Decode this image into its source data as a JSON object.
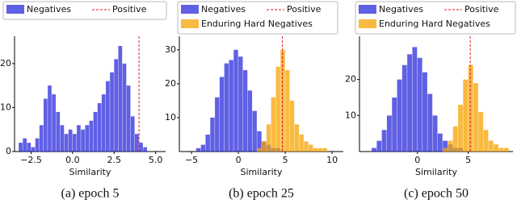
{
  "chart_data": [
    {
      "type": "histogram",
      "xlabel": "Similarity",
      "caption": "(a) epoch 5",
      "bins": [
        -3.5,
        -3.25,
        -3.0,
        -2.75,
        -2.5,
        -2.25,
        -2.0,
        -1.75,
        -1.5,
        -1.25,
        -1.0,
        -0.75,
        -0.5,
        -0.25,
        0,
        0.25,
        0.5,
        0.75,
        1.0,
        1.25,
        1.5,
        1.75,
        2.0,
        2.25,
        2.5,
        2.75,
        3.0,
        3.25,
        3.5,
        3.75,
        4.0,
        4.25,
        4.5,
        4.75,
        5.0,
        5.25,
        5.5
      ],
      "series": [
        {
          "name": "Negatives",
          "color": "#2b2bdc",
          "values": [
            0,
            2,
            3,
            2,
            1,
            3,
            6,
            12,
            15,
            13,
            9,
            6,
            4,
            5,
            4,
            6,
            5,
            6,
            7,
            9,
            11,
            13,
            16,
            18,
            21,
            24,
            20,
            15,
            8,
            4,
            2,
            1,
            0,
            0,
            0,
            0
          ]
        }
      ],
      "reference_line": {
        "name": "Positive",
        "x": 4.0,
        "color": "#e41a1c"
      },
      "xlim": [
        -3.5,
        5.6
      ],
      "ylim": [
        0,
        26.2
      ],
      "xticks": [
        {
          "value": -2.5,
          "label": "−2.5"
        },
        {
          "value": 0,
          "label": "0.0"
        },
        2.5,
        {
          "value": 5,
          "label": "5.0"
        }
      ],
      "yticks": [
        0,
        10,
        20
      ]
    },
    {
      "type": "histogram",
      "xlabel": "Similarity",
      "caption": "(b) epoch 25",
      "bins": [
        -5,
        -4.5,
        -4,
        -3.5,
        -3,
        -2.5,
        -2,
        -1.5,
        -1,
        -0.5,
        0,
        0.5,
        1,
        1.5,
        2,
        2.5,
        3,
        3.5,
        4,
        4.5,
        5,
        5.5,
        6,
        6.5,
        7,
        7.5,
        8,
        8.5,
        9,
        9.5,
        10
      ],
      "series": [
        {
          "name": "Negatives",
          "color": "#2b2bdc",
          "values": [
            0,
            1,
            2,
            5,
            10,
            16,
            22,
            26,
            27,
            30,
            28,
            24,
            18,
            12,
            6,
            3,
            2,
            1,
            1,
            0,
            0,
            0,
            0,
            0,
            0,
            0,
            0,
            0,
            0,
            0
          ]
        },
        {
          "name": "Enduring Hard Negatives",
          "color": "#f5a300",
          "values": [
            0,
            0,
            0,
            0,
            0,
            0,
            0,
            0,
            0,
            0,
            0,
            0,
            0,
            0,
            1,
            3,
            8,
            16,
            25,
            30,
            24,
            15,
            8,
            5,
            3,
            2,
            1,
            1,
            1,
            0
          ]
        }
      ],
      "reference_line": {
        "name": "Positive",
        "x": 4.7,
        "color": "#e41a1c"
      },
      "xlim": [
        -6.3,
        11.2
      ],
      "ylim": [
        0,
        34
      ],
      "xticks": [
        {
          "value": -5,
          "label": "−5"
        },
        0,
        5,
        10
      ],
      "yticks": [
        10,
        20,
        30
      ]
    },
    {
      "type": "histogram",
      "xlabel": "Similarity",
      "caption": "(c) epoch 50",
      "bins": [
        -5.5,
        -5,
        -4.5,
        -4,
        -3.5,
        -3,
        -2.5,
        -2,
        -1.5,
        -1,
        -0.5,
        0,
        0.5,
        1,
        1.5,
        2,
        2.5,
        3,
        3.5,
        4,
        4.5,
        5,
        5.5,
        6,
        6.5,
        7,
        7.5,
        8,
        8.5,
        9,
        9.5
      ],
      "series": [
        {
          "name": "Negatives",
          "color": "#2b2bdc",
          "values": [
            0,
            0,
            1,
            3,
            6,
            10,
            15,
            20,
            24,
            27,
            29,
            26,
            22,
            16,
            10,
            5,
            3,
            2,
            1,
            1,
            0,
            0,
            0,
            0,
            0,
            0,
            0,
            0,
            0,
            0
          ]
        },
        {
          "name": "Enduring Hard Negatives",
          "color": "#f5a300",
          "values": [
            0,
            0,
            0,
            0,
            0,
            0,
            0,
            0,
            0,
            0,
            0,
            0,
            0,
            0,
            0,
            0,
            1,
            3,
            7,
            13,
            20,
            24,
            19,
            11,
            6,
            3,
            2,
            1,
            1,
            0
          ]
        }
      ],
      "reference_line": {
        "name": "Positive",
        "x": 5.2,
        "color": "#e41a1c"
      },
      "xlim": [
        -5.7,
        9.4
      ],
      "ylim": [
        0,
        32
      ],
      "xticks": [
        0,
        5
      ],
      "yticks": [
        10,
        20
      ]
    }
  ]
}
